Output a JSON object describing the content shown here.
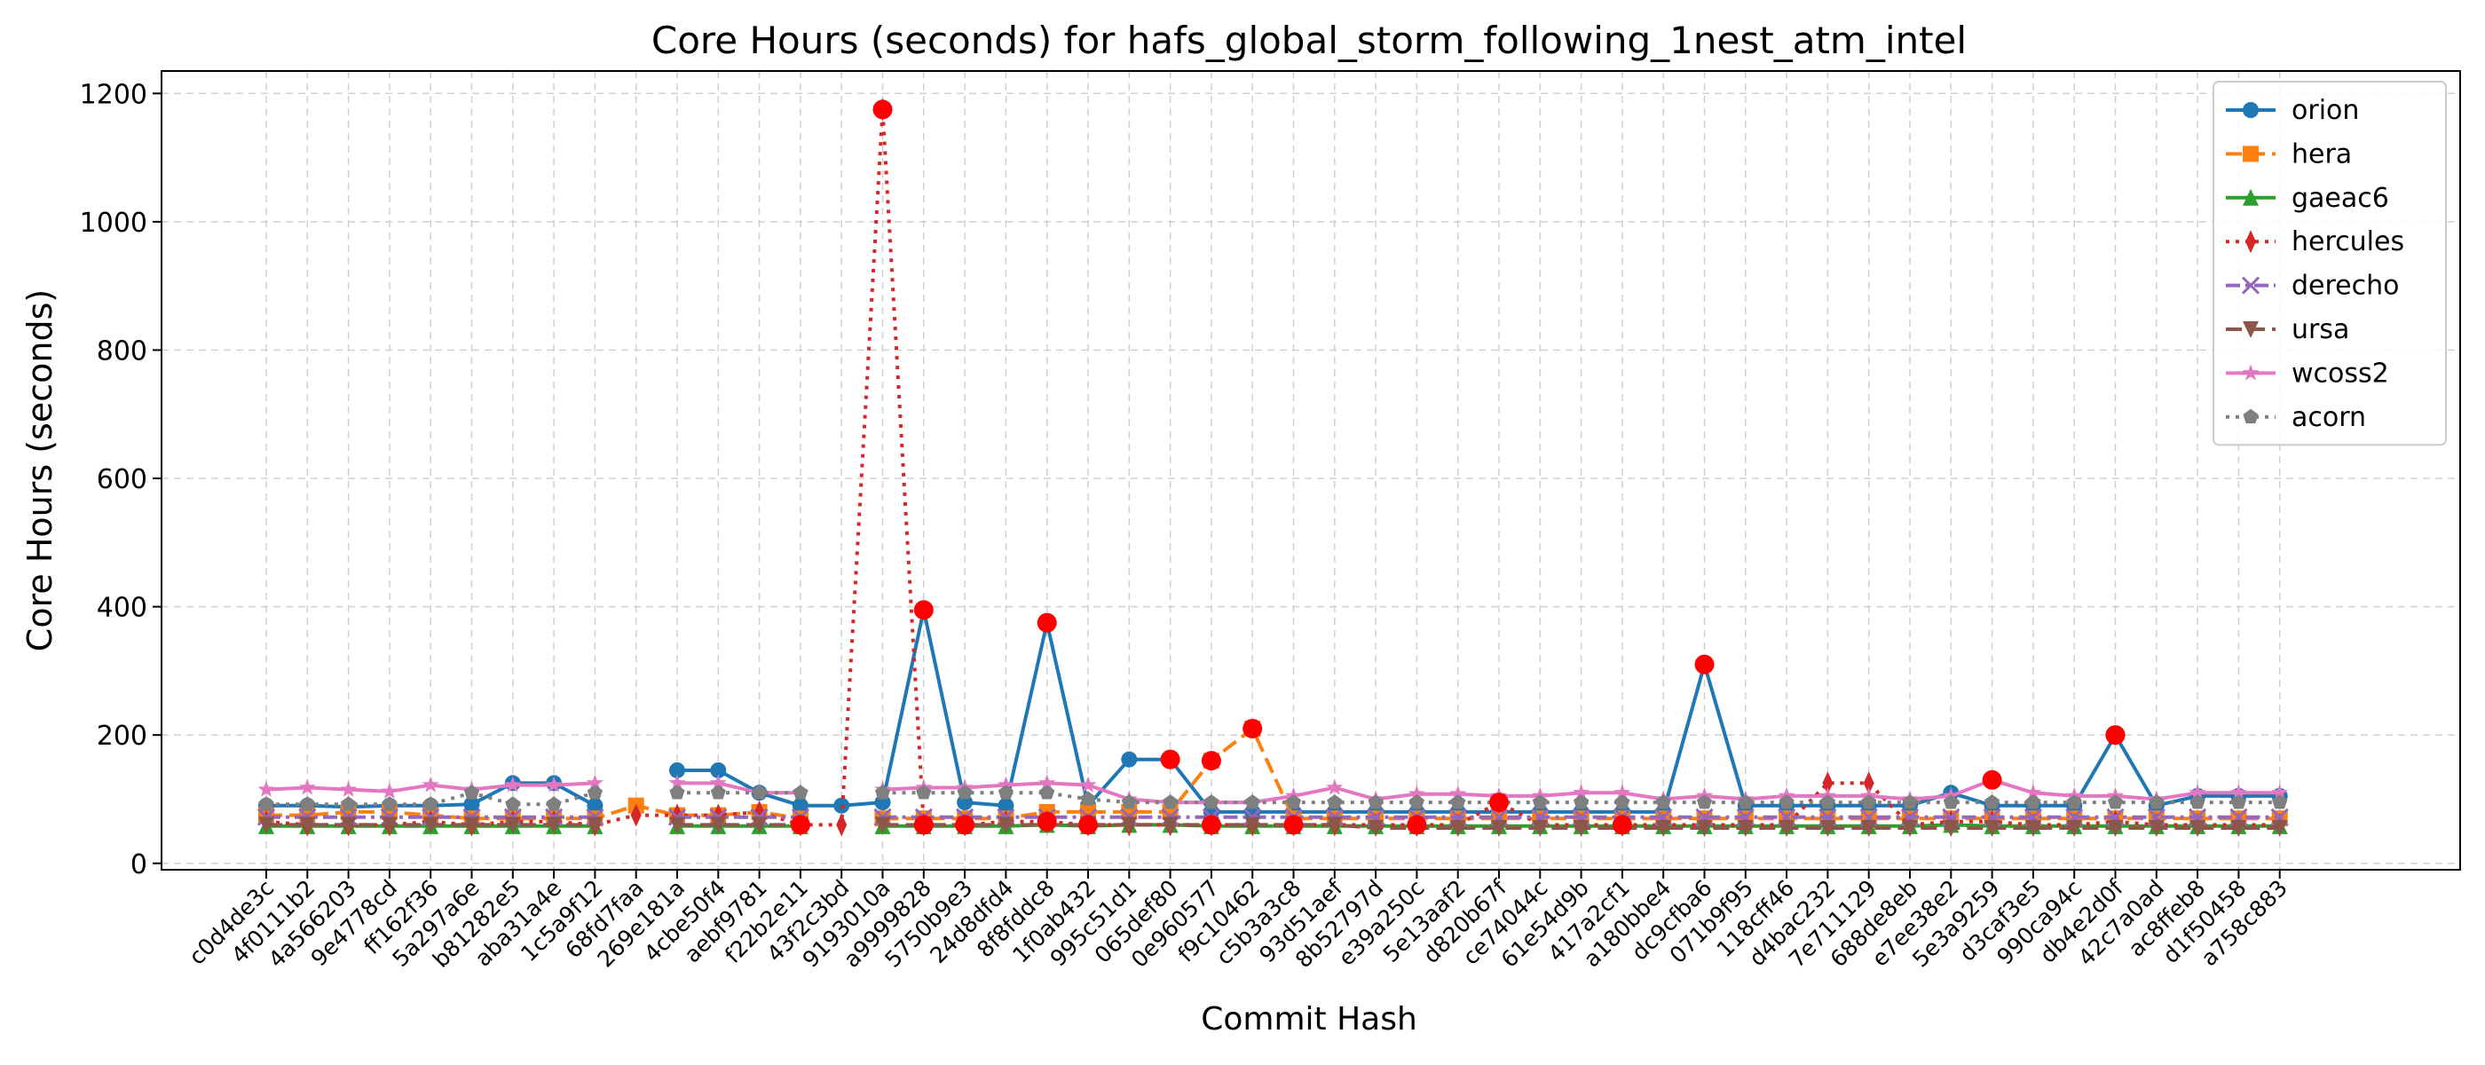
{
  "chart_data": {
    "type": "line",
    "title": "Core Hours (seconds) for hafs_global_storm_following_1nest_atm_intel",
    "xlabel": "Commit Hash",
    "ylabel": "Core Hours (seconds)",
    "ylim": [
      -10,
      1235
    ],
    "yticks": [
      0,
      200,
      400,
      600,
      800,
      1000,
      1200
    ],
    "grid": true,
    "legend_position": "top-right",
    "categories": [
      "c0d4de3c",
      "4f0111b2",
      "4a566203",
      "9e4778cd",
      "ff162f36",
      "5a297a6e",
      "b81282e5",
      "aba31a4e",
      "1c5a9f12",
      "68fd7faa",
      "269e181a",
      "4cbe50f4",
      "aebf9781",
      "f22b2e11",
      "43f2c3bd",
      "9193010a",
      "a9999828",
      "5750b9e3",
      "24d8dfd4",
      "8f8fddc8",
      "1f0ab432",
      "995c51d1",
      "065def80",
      "0e960577",
      "f9c10462",
      "c5b3a3c8",
      "93d51aef",
      "8b52797d",
      "e39a250c",
      "5e13aaf2",
      "d820b67f",
      "ce74044c",
      "61e54d9b",
      "417a2cf1",
      "a180bbe4",
      "dc9cfba6",
      "071b9f95",
      "118cff46",
      "d4bac232",
      "7e711129",
      "688de8eb",
      "e7ee38e2",
      "5e3a9259",
      "d3caf3e5",
      "990ca94c",
      "db4e2d0f",
      "42c7a0ad",
      "ac8ffeb8",
      "d1f50458",
      "a758c883"
    ],
    "series": [
      {
        "name": "orion",
        "color": "#1f77b4",
        "dash": "solid",
        "marker": "circle",
        "values": [
          90,
          90,
          88,
          90,
          90,
          92,
          125,
          125,
          90,
          null,
          145,
          145,
          110,
          90,
          90,
          95,
          395,
          95,
          90,
          375,
          90,
          162,
          162,
          80,
          80,
          80,
          80,
          80,
          80,
          80,
          80,
          80,
          80,
          80,
          80,
          310,
          90,
          90,
          90,
          90,
          90,
          110,
          90,
          90,
          90,
          200,
          90,
          105,
          105,
          105
        ]
      },
      {
        "name": "hera",
        "color": "#ff7f0e",
        "dash": "dashed",
        "marker": "square",
        "values": [
          75,
          75,
          80,
          80,
          75,
          70,
          70,
          70,
          70,
          90,
          75,
          75,
          80,
          70,
          null,
          70,
          70,
          70,
          70,
          80,
          80,
          80,
          80,
          160,
          210,
          70,
          70,
          70,
          70,
          70,
          70,
          70,
          70,
          70,
          70,
          70,
          70,
          70,
          70,
          70,
          70,
          70,
          70,
          70,
          70,
          70,
          70,
          70,
          70,
          70
        ]
      },
      {
        "name": "gaeac6",
        "color": "#2ca02c",
        "dash": "solid",
        "marker": "triangle",
        "values": [
          58,
          58,
          58,
          58,
          58,
          58,
          58,
          58,
          58,
          null,
          58,
          58,
          58,
          58,
          null,
          58,
          58,
          58,
          58,
          60,
          58,
          60,
          60,
          58,
          58,
          58,
          58,
          58,
          58,
          58,
          58,
          58,
          58,
          58,
          58,
          58,
          58,
          58,
          58,
          58,
          58,
          60,
          58,
          58,
          58,
          58,
          58,
          58,
          58,
          58
        ]
      },
      {
        "name": "hercules",
        "color": "#d62728",
        "dash": "dotted",
        "marker": "diamond",
        "values": [
          65,
          60,
          60,
          60,
          65,
          60,
          65,
          65,
          60,
          75,
          75,
          75,
          80,
          60,
          60,
          1175,
          60,
          60,
          65,
          65,
          60,
          60,
          60,
          60,
          60,
          60,
          60,
          60,
          60,
          60,
          95,
          60,
          60,
          60,
          60,
          60,
          60,
          60,
          125,
          125,
          60,
          65,
          65,
          60,
          60,
          65,
          60,
          60,
          60,
          60
        ]
      },
      {
        "name": "derecho",
        "color": "#9467bd",
        "dash": "dashdot",
        "marker": "x",
        "values": [
          72,
          72,
          72,
          72,
          72,
          72,
          72,
          72,
          72,
          null,
          72,
          72,
          72,
          72,
          null,
          72,
          72,
          72,
          72,
          72,
          72,
          72,
          72,
          72,
          72,
          72,
          72,
          72,
          72,
          72,
          72,
          72,
          72,
          72,
          72,
          72,
          72,
          72,
          72,
          72,
          72,
          72,
          72,
          72,
          72,
          72,
          72,
          72,
          72,
          72
        ]
      },
      {
        "name": "ursa",
        "color": "#8c564b",
        "dash": "dashed",
        "marker": "triangle-down",
        "values": [
          60,
          60,
          60,
          60,
          60,
          60,
          60,
          60,
          60,
          null,
          60,
          60,
          60,
          60,
          null,
          60,
          60,
          60,
          60,
          60,
          60,
          60,
          60,
          60,
          60,
          60,
          60,
          55,
          55,
          55,
          55,
          55,
          55,
          55,
          55,
          55,
          55,
          55,
          55,
          55,
          55,
          55,
          55,
          55,
          55,
          55,
          55,
          55,
          55,
          55
        ]
      },
      {
        "name": "wcoss2",
        "color": "#e377c2",
        "dash": "solid",
        "marker": "star",
        "values": [
          115,
          118,
          115,
          112,
          122,
          115,
          122,
          122,
          125,
          null,
          125,
          125,
          110,
          110,
          null,
          115,
          118,
          118,
          122,
          125,
          122,
          100,
          95,
          95,
          95,
          105,
          118,
          100,
          108,
          108,
          105,
          105,
          110,
          110,
          100,
          105,
          100,
          105,
          105,
          105,
          100,
          105,
          130,
          110,
          105,
          105,
          100,
          110,
          110,
          110
        ]
      },
      {
        "name": "acorn",
        "color": "#7f7f7f",
        "dash": "dotted",
        "marker": "pentagon",
        "values": [
          92,
          92,
          92,
          92,
          92,
          110,
          92,
          92,
          110,
          null,
          110,
          110,
          110,
          110,
          null,
          110,
          110,
          110,
          110,
          110,
          100,
          95,
          95,
          95,
          95,
          95,
          95,
          95,
          95,
          95,
          95,
          95,
          95,
          95,
          95,
          95,
          95,
          95,
          95,
          95,
          95,
          95,
          95,
          95,
          95,
          95,
          95,
          95,
          95,
          95
        ]
      }
    ],
    "highlights": [
      {
        "series": "orion",
        "index": 16
      },
      {
        "series": "orion",
        "index": 19
      },
      {
        "series": "orion",
        "index": 35
      },
      {
        "series": "orion",
        "index": 45
      },
      {
        "series": "hercules",
        "index": 15
      },
      {
        "series": "hera",
        "index": 23
      },
      {
        "series": "hera",
        "index": 24
      },
      {
        "series": "hercules",
        "index": 13
      },
      {
        "series": "hercules",
        "index": 16
      },
      {
        "series": "hercules",
        "index": 17
      },
      {
        "series": "hercules",
        "index": 19
      },
      {
        "series": "hercules",
        "index": 20
      },
      {
        "series": "hercules",
        "index": 23
      },
      {
        "series": "hercules",
        "index": 25
      },
      {
        "series": "hercules",
        "index": 28
      },
      {
        "series": "hercules",
        "index": 30
      },
      {
        "series": "hercules",
        "index": 33
      },
      {
        "series": "wcoss2",
        "index": 42
      },
      {
        "series": "orion",
        "index": 22
      },
      {
        "series": "orion",
        "index": 45
      }
    ],
    "highlight_color": "#ff0000"
  }
}
